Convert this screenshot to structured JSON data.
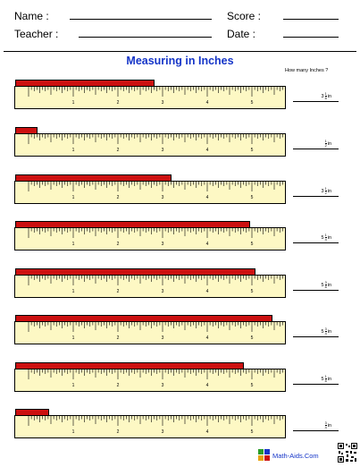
{
  "header": {
    "name_label": "Name :",
    "score_label": "Score :",
    "teacher_label": "Teacher :",
    "date_label": "Date :"
  },
  "title": "Measuring in Inches",
  "question": "How many Inches ?",
  "ruler_numbers": [
    "1",
    "2",
    "3",
    "4",
    "5",
    "6"
  ],
  "unit_label": "in",
  "problems": [
    {
      "length_in": 3.125,
      "whole": "3",
      "num": "1",
      "den": "8"
    },
    {
      "length_in": 0.5,
      "whole": "",
      "num": "1",
      "den": "2"
    },
    {
      "length_in": 3.5,
      "whole": "3",
      "num": "1",
      "den": "2"
    },
    {
      "length_in": 5.25,
      "whole": "5",
      "num": "1",
      "den": "4"
    },
    {
      "length_in": 5.375,
      "whole": "5",
      "num": "3",
      "den": "8"
    },
    {
      "length_in": 5.75,
      "whole": "5",
      "num": "3",
      "den": "4"
    },
    {
      "length_in": 5.125,
      "whole": "5",
      "num": "1",
      "den": "8"
    },
    {
      "length_in": 0.75,
      "whole": "",
      "num": "3",
      "den": "4"
    }
  ],
  "footer": {
    "site": "Math-Aids.Com",
    "logo_icon": "math-aids-logo-icon",
    "qr_icon": "qr-code-icon"
  },
  "colors": {
    "bar": "#cc1010",
    "ruler": "#fdf8c4",
    "title": "#1535c8"
  }
}
